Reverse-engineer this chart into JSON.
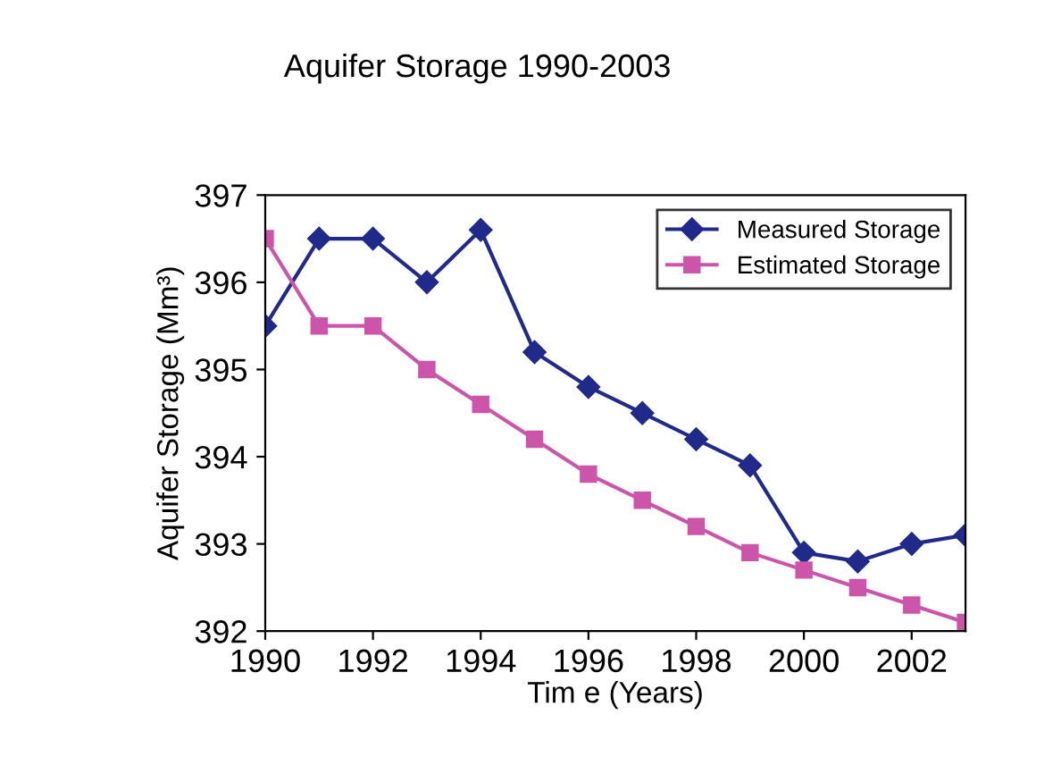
{
  "chart_data": {
    "type": "line",
    "title": "Aquifer Storage 1990-2003",
    "xlabel": "Tim e (Years)",
    "ylabel": "Aquifer Storage (Mm³)",
    "x": [
      1990,
      1991,
      1992,
      1993,
      1994,
      1995,
      1996,
      1997,
      1998,
      1999,
      2000,
      2001,
      2002,
      2003
    ],
    "series": [
      {
        "name": "Measured Storage",
        "color": "#1f2a8a",
        "marker": "diamond",
        "values": [
          395.5,
          396.5,
          396.5,
          396.0,
          396.6,
          395.2,
          394.8,
          394.5,
          394.2,
          393.9,
          392.9,
          392.8,
          393.0,
          393.1
        ]
      },
      {
        "name": "Estimated Storage",
        "color": "#cc55aa",
        "marker": "square",
        "values": [
          396.5,
          395.5,
          395.5,
          395.0,
          394.6,
          394.2,
          393.8,
          393.5,
          393.2,
          392.9,
          392.7,
          392.5,
          392.3,
          392.1
        ]
      }
    ],
    "xlim": [
      1990,
      2003
    ],
    "xticks": [
      1990,
      1992,
      1994,
      1996,
      1998,
      2000,
      2002
    ],
    "ylim": [
      392,
      397
    ],
    "yticks": [
      392,
      393,
      394,
      395,
      396,
      397
    ],
    "grid": false,
    "legend": "top right"
  }
}
